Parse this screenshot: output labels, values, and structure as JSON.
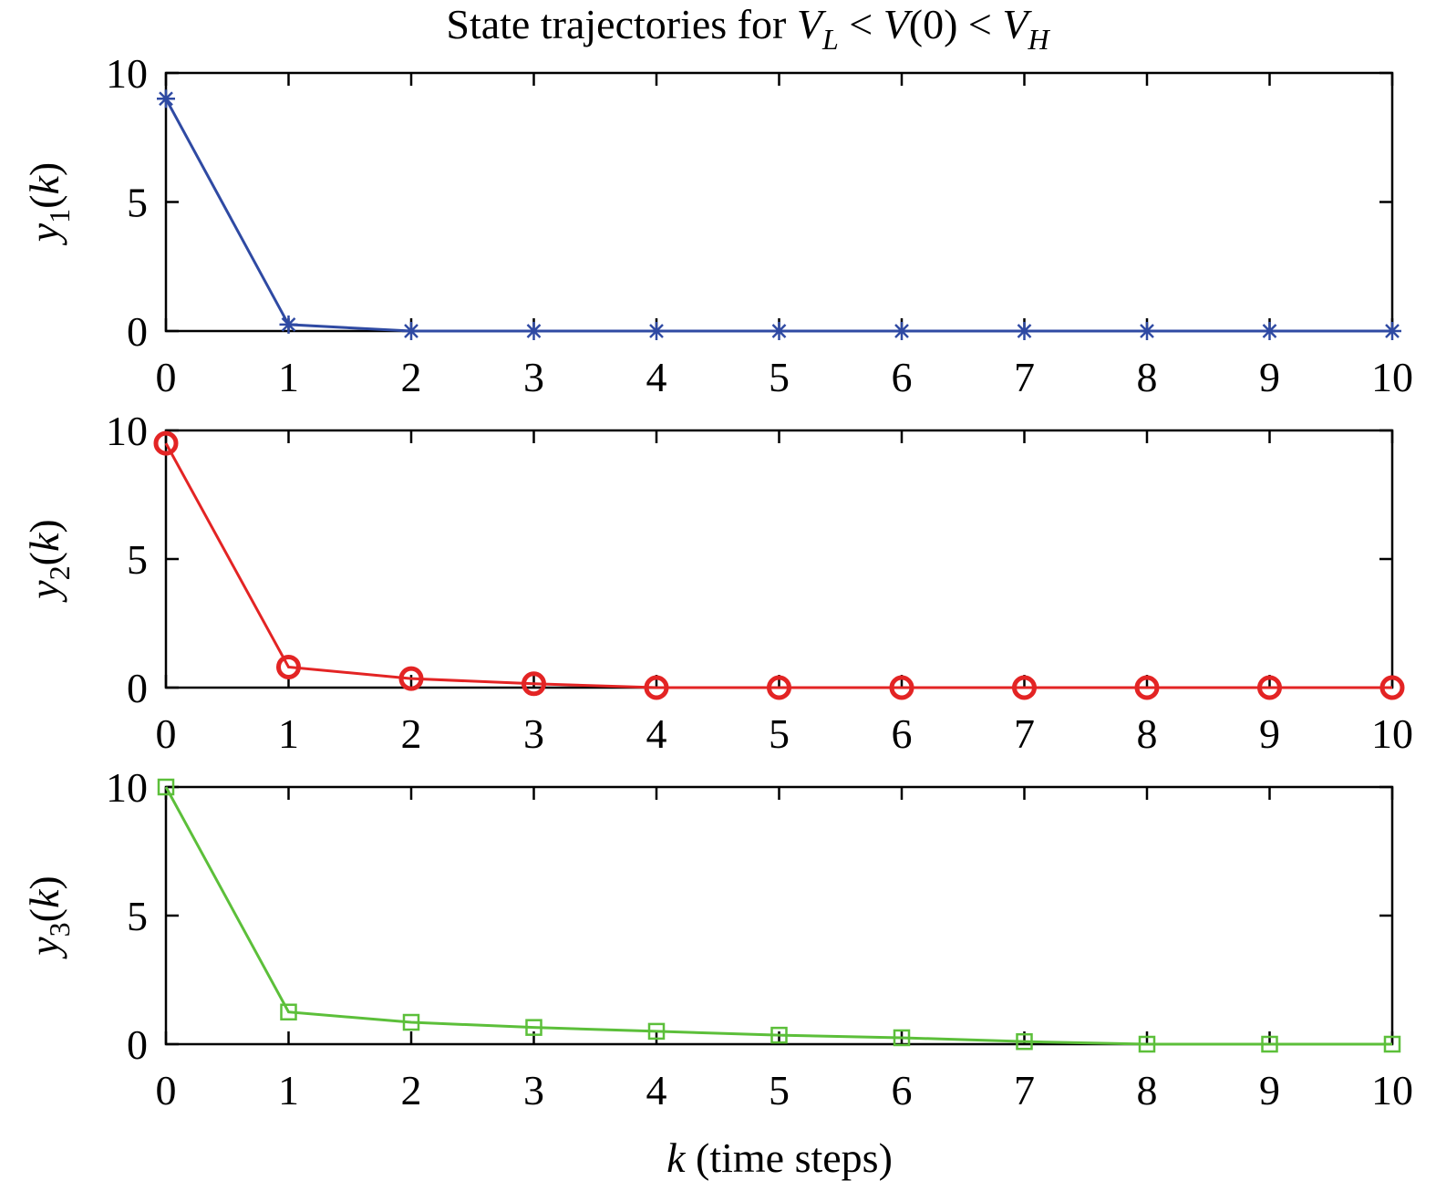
{
  "title": {
    "prefix": "State trajectories for ",
    "v1": "V",
    "v1_sub": "L",
    "mid": " < ",
    "v2": "V",
    "v2_rest": "(0) < ",
    "v3": "V",
    "v3_sub": "H"
  },
  "xlabel": {
    "var": "k",
    "rest": " (time steps)"
  },
  "chart_data": [
    {
      "type": "line",
      "ylabel": {
        "var": "y",
        "sub": "1",
        "rest": "(k)"
      },
      "x": [
        0,
        1,
        2,
        3,
        4,
        5,
        6,
        7,
        8,
        9,
        10
      ],
      "series": [
        {
          "values": [
            9,
            0.25,
            0,
            0,
            0,
            0,
            0,
            0,
            0,
            0,
            0
          ],
          "color": "#2f4aa3",
          "marker": "asterisk"
        }
      ],
      "xlim": [
        0,
        10
      ],
      "ylim": [
        0,
        10
      ],
      "xticks": [
        0,
        1,
        2,
        3,
        4,
        5,
        6,
        7,
        8,
        9,
        10
      ],
      "yticks": [
        0,
        5,
        10
      ],
      "grid": false
    },
    {
      "type": "line",
      "ylabel": {
        "var": "y",
        "sub": "2",
        "rest": "(k)"
      },
      "x": [
        0,
        1,
        2,
        3,
        4,
        5,
        6,
        7,
        8,
        9,
        10
      ],
      "series": [
        {
          "values": [
            9.5,
            0.8,
            0.35,
            0.15,
            0,
            0,
            0,
            0,
            0,
            0,
            0
          ],
          "color": "#e32424",
          "marker": "circle"
        }
      ],
      "xlim": [
        0,
        10
      ],
      "ylim": [
        0,
        10
      ],
      "xticks": [
        0,
        1,
        2,
        3,
        4,
        5,
        6,
        7,
        8,
        9,
        10
      ],
      "yticks": [
        0,
        5,
        10
      ],
      "grid": false
    },
    {
      "type": "line",
      "ylabel": {
        "var": "y",
        "sub": "3",
        "rest": "(k)"
      },
      "x": [
        0,
        1,
        2,
        3,
        4,
        5,
        6,
        7,
        8,
        9,
        10
      ],
      "series": [
        {
          "values": [
            10,
            1.25,
            0.85,
            0.65,
            0.5,
            0.35,
            0.25,
            0.1,
            0,
            0,
            0
          ],
          "color": "#5cbf3a",
          "marker": "square"
        }
      ],
      "xlim": [
        0,
        10
      ],
      "ylim": [
        0,
        10
      ],
      "xticks": [
        0,
        1,
        2,
        3,
        4,
        5,
        6,
        7,
        8,
        9,
        10
      ],
      "yticks": [
        0,
        5,
        10
      ],
      "grid": false
    }
  ]
}
